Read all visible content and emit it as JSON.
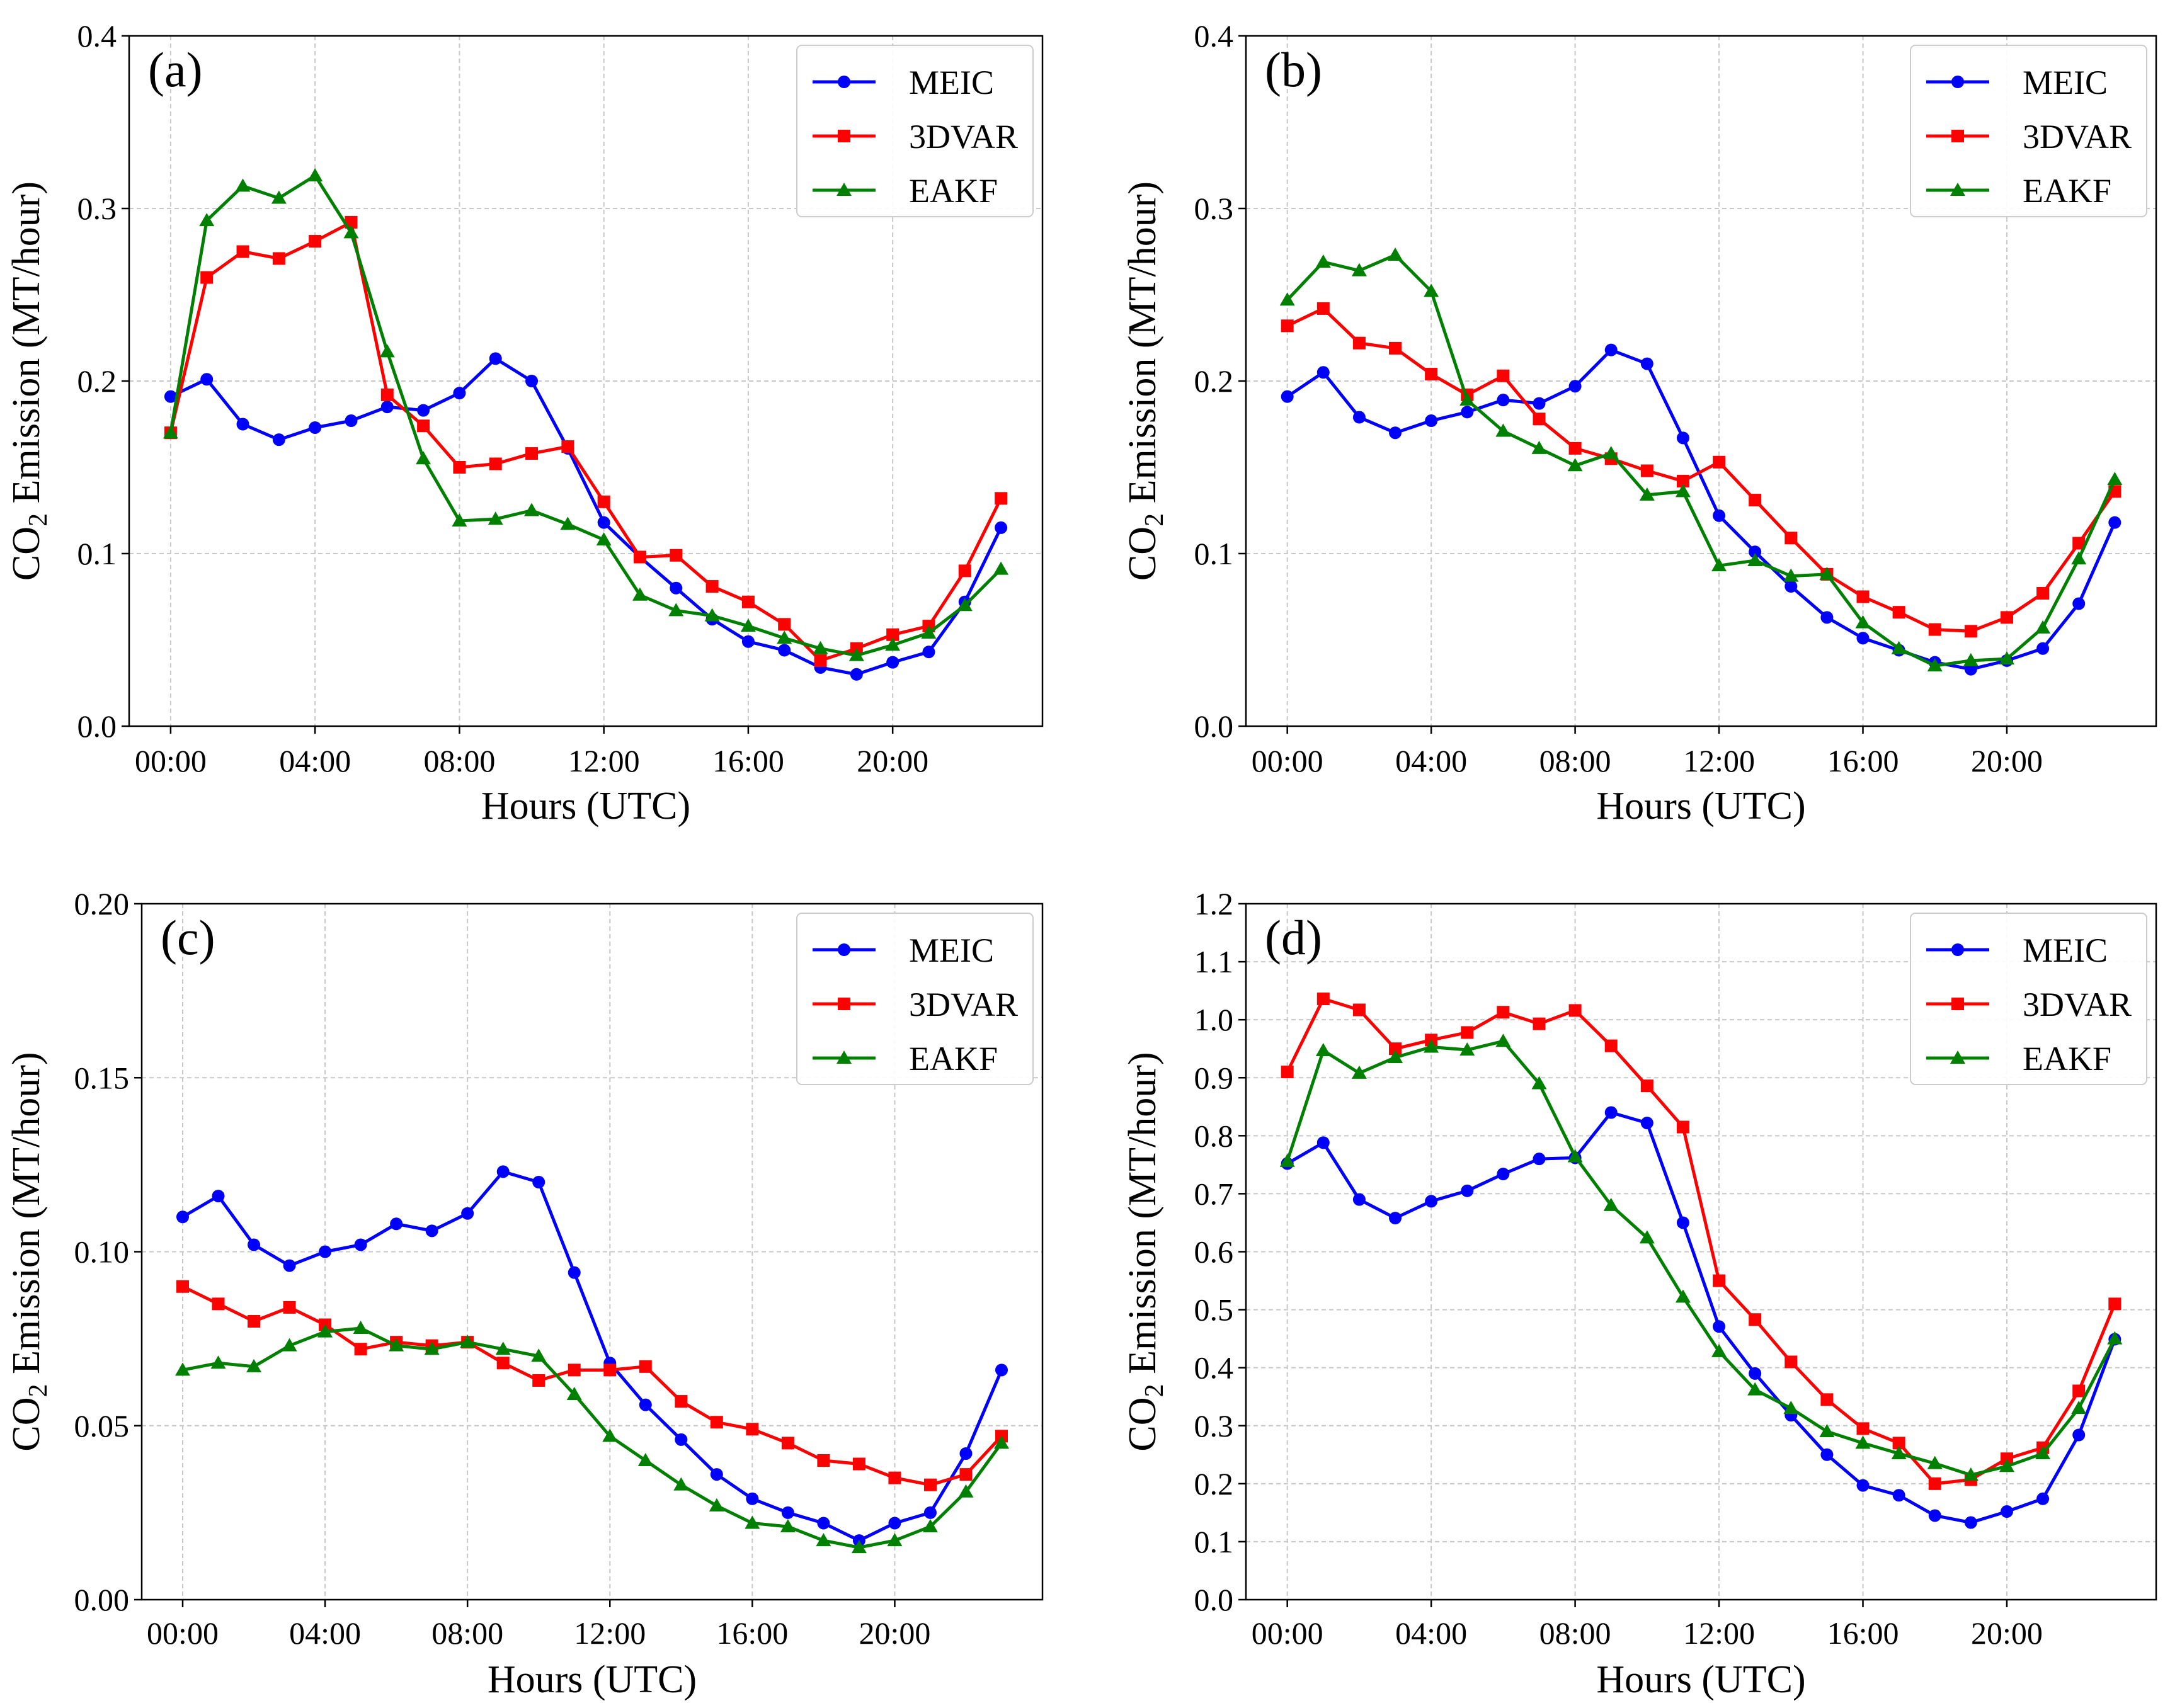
{
  "figure": {
    "x_tick_labels": [
      "00:00",
      "04:00",
      "08:00",
      "12:00",
      "16:00",
      "20:00"
    ],
    "x_tick_hours": [
      0,
      4,
      8,
      12,
      16,
      20
    ],
    "xlabel": "Hours (UTC)",
    "ylabel_prefix": "CO",
    "ylabel_subscript": "2",
    "ylabel_suffix": " Emission (MT/hour)",
    "series_style": [
      {
        "name": "MEIC",
        "color": "#0000ff",
        "marker": "circle"
      },
      {
        "name": "3DVAR",
        "color": "#ff0000",
        "marker": "square"
      },
      {
        "name": "EAKF",
        "color": "#008000",
        "marker": "triangle"
      }
    ]
  },
  "chart_data": [
    {
      "type": "line",
      "panel_label": "(a)",
      "x": [
        0,
        1,
        2,
        3,
        4,
        5,
        6,
        7,
        8,
        9,
        10,
        11,
        12,
        13,
        14,
        15,
        16,
        17,
        18,
        19,
        20,
        21,
        22,
        23
      ],
      "ylim": [
        0,
        0.4
      ],
      "yticks": [
        0.0,
        0.1,
        0.2,
        0.3,
        0.4
      ],
      "ytick_labels": [
        "0.0",
        "0.1",
        "0.2",
        "0.3",
        "0.4"
      ],
      "legend": "top-right",
      "grid": true,
      "series": [
        {
          "name": "MEIC",
          "values": [
            0.191,
            0.201,
            0.175,
            0.166,
            0.173,
            0.177,
            0.185,
            0.183,
            0.193,
            0.213,
            0.2,
            0.161,
            0.118,
            0.098,
            0.08,
            0.062,
            0.049,
            0.044,
            0.034,
            0.03,
            0.037,
            0.043,
            0.072,
            0.115
          ]
        },
        {
          "name": "3DVAR",
          "values": [
            0.17,
            0.26,
            0.275,
            0.271,
            0.281,
            0.292,
            0.192,
            0.174,
            0.15,
            0.152,
            0.158,
            0.162,
            0.13,
            0.098,
            0.099,
            0.081,
            0.072,
            0.059,
            0.038,
            0.045,
            0.053,
            0.058,
            0.09,
            0.132
          ]
        },
        {
          "name": "EAKF",
          "values": [
            0.17,
            0.293,
            0.313,
            0.306,
            0.319,
            0.286,
            0.217,
            0.155,
            0.119,
            0.12,
            0.125,
            0.117,
            0.108,
            0.076,
            0.067,
            0.064,
            0.058,
            0.051,
            0.045,
            0.041,
            0.047,
            0.054,
            0.07,
            0.091
          ]
        }
      ]
    },
    {
      "type": "line",
      "panel_label": "(b)",
      "x": [
        0,
        1,
        2,
        3,
        4,
        5,
        6,
        7,
        8,
        9,
        10,
        11,
        12,
        13,
        14,
        15,
        16,
        17,
        18,
        19,
        20,
        21,
        22,
        23
      ],
      "ylim": [
        0,
        0.4
      ],
      "yticks": [
        0.0,
        0.1,
        0.2,
        0.3,
        0.4
      ],
      "ytick_labels": [
        "0.0",
        "0.1",
        "0.2",
        "0.3",
        "0.4"
      ],
      "legend": "top-right",
      "grid": true,
      "series": [
        {
          "name": "MEIC",
          "values": [
            0.191,
            0.205,
            0.179,
            0.17,
            0.177,
            0.182,
            0.189,
            0.187,
            0.197,
            0.218,
            0.21,
            0.167,
            0.122,
            0.101,
            0.081,
            0.063,
            0.051,
            0.044,
            0.037,
            0.033,
            0.038,
            0.045,
            0.071,
            0.118
          ]
        },
        {
          "name": "3DVAR",
          "values": [
            0.232,
            0.242,
            0.222,
            0.219,
            0.204,
            0.192,
            0.203,
            0.178,
            0.161,
            0.155,
            0.148,
            0.142,
            0.153,
            0.131,
            0.109,
            0.088,
            0.075,
            0.066,
            0.056,
            0.055,
            0.063,
            0.077,
            0.106,
            0.136
          ]
        },
        {
          "name": "EAKF",
          "values": [
            0.247,
            0.269,
            0.264,
            0.273,
            0.252,
            0.189,
            0.171,
            0.161,
            0.151,
            0.158,
            0.134,
            0.136,
            0.093,
            0.096,
            0.087,
            0.088,
            0.06,
            0.045,
            0.035,
            0.038,
            0.039,
            0.057,
            0.097,
            0.143
          ]
        }
      ]
    },
    {
      "type": "line",
      "panel_label": "(c)",
      "x": [
        0,
        1,
        2,
        3,
        4,
        5,
        6,
        7,
        8,
        9,
        10,
        11,
        12,
        13,
        14,
        15,
        16,
        17,
        18,
        19,
        20,
        21,
        22,
        23
      ],
      "ylim": [
        0,
        0.2
      ],
      "yticks": [
        0.0,
        0.05,
        0.1,
        0.15,
        0.2
      ],
      "ytick_labels": [
        "0.00",
        "0.05",
        "0.10",
        "0.15",
        "0.20"
      ],
      "legend": "top-right",
      "grid": true,
      "series": [
        {
          "name": "MEIC",
          "values": [
            0.11,
            0.116,
            0.102,
            0.096,
            0.1,
            0.102,
            0.108,
            0.106,
            0.111,
            0.123,
            0.12,
            0.094,
            0.068,
            0.056,
            0.046,
            0.036,
            0.029,
            0.025,
            0.022,
            0.017,
            0.022,
            0.025,
            0.042,
            0.066
          ]
        },
        {
          "name": "3DVAR",
          "values": [
            0.09,
            0.085,
            0.08,
            0.084,
            0.079,
            0.072,
            0.074,
            0.073,
            0.074,
            0.068,
            0.063,
            0.066,
            0.066,
            0.067,
            0.057,
            0.051,
            0.049,
            0.045,
            0.04,
            0.039,
            0.035,
            0.033,
            0.036,
            0.047
          ]
        },
        {
          "name": "EAKF",
          "values": [
            0.066,
            0.068,
            0.067,
            0.073,
            0.077,
            0.078,
            0.073,
            0.072,
            0.074,
            0.072,
            0.07,
            0.059,
            0.047,
            0.04,
            0.033,
            0.027,
            0.022,
            0.021,
            0.017,
            0.015,
            0.017,
            0.021,
            0.031,
            0.045
          ]
        }
      ]
    },
    {
      "type": "line",
      "panel_label": "(d)",
      "x": [
        0,
        1,
        2,
        3,
        4,
        5,
        6,
        7,
        8,
        9,
        10,
        11,
        12,
        13,
        14,
        15,
        16,
        17,
        18,
        19,
        20,
        21,
        22,
        23
      ],
      "ylim": [
        0,
        1.2
      ],
      "yticks": [
        0.0,
        0.1,
        0.2,
        0.3,
        0.4,
        0.5,
        0.6,
        0.7,
        0.8,
        0.9,
        1.0,
        1.1,
        1.2
      ],
      "ytick_labels": [
        "0.0",
        "0.1",
        "0.2",
        "0.3",
        "0.4",
        "0.5",
        "0.6",
        "0.7",
        "0.8",
        "0.9",
        "1.0",
        "1.1",
        "1.2"
      ],
      "legend": "top-right",
      "grid": true,
      "series": [
        {
          "name": "MEIC",
          "values": [
            0.752,
            0.788,
            0.69,
            0.658,
            0.687,
            0.705,
            0.734,
            0.76,
            0.762,
            0.84,
            0.822,
            0.65,
            0.471,
            0.39,
            0.318,
            0.25,
            0.197,
            0.18,
            0.145,
            0.133,
            0.152,
            0.174,
            0.284,
            0.449
          ]
        },
        {
          "name": "3DVAR",
          "values": [
            0.91,
            1.036,
            1.017,
            0.95,
            0.965,
            0.978,
            1.013,
            0.993,
            1.016,
            0.955,
            0.886,
            0.815,
            0.55,
            0.483,
            0.41,
            0.345,
            0.295,
            0.27,
            0.2,
            0.207,
            0.243,
            0.262,
            0.36,
            0.51
          ]
        },
        {
          "name": "EAKF",
          "values": [
            0.756,
            0.947,
            0.908,
            0.935,
            0.953,
            0.948,
            0.963,
            0.89,
            0.764,
            0.68,
            0.624,
            0.522,
            0.428,
            0.362,
            0.33,
            0.29,
            0.27,
            0.252,
            0.235,
            0.215,
            0.23,
            0.252,
            0.33,
            0.45
          ]
        }
      ]
    }
  ]
}
